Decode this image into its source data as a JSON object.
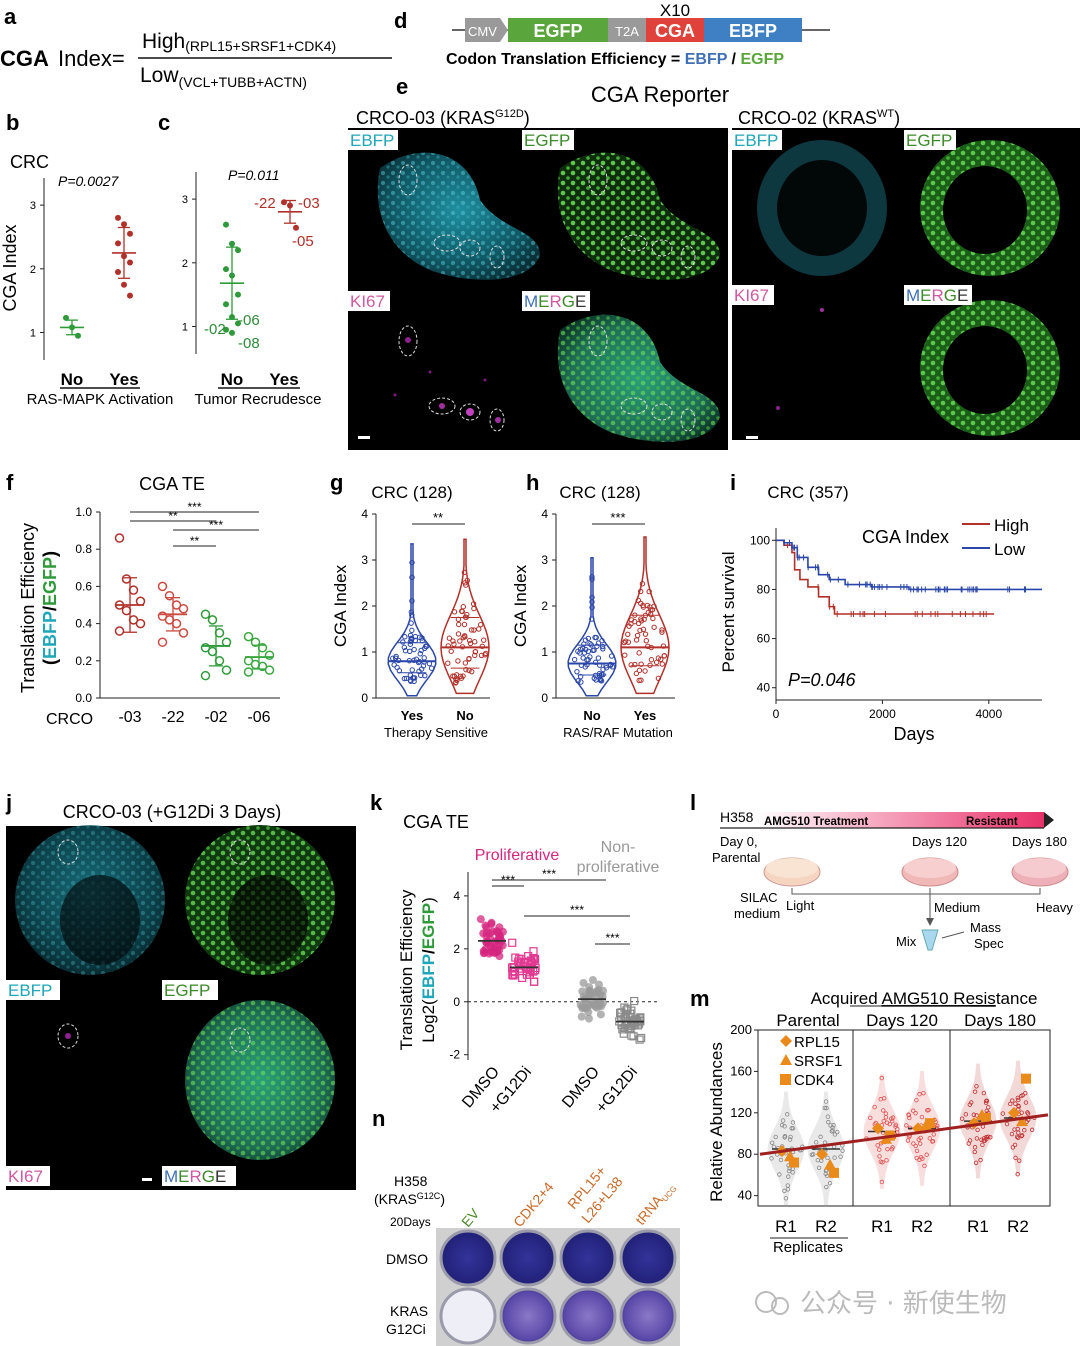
{
  "labels": {
    "a": "a",
    "b": "b",
    "c": "c",
    "d": "d",
    "e": "e",
    "f": "f",
    "g": "g",
    "h": "h",
    "i": "i",
    "j": "j",
    "k": "k",
    "l": "l",
    "m": "m",
    "n": "n"
  },
  "panel_a": {
    "prefix": "CGA",
    "word": "Index=",
    "numer_main": "High",
    "numer_sub": "(RPL15+SRSF1+CDK4)",
    "denom_main": "Low",
    "denom_sub": "(VCL+TUBB+ACTN)"
  },
  "panel_d": {
    "cmv": "CMV",
    "egfp": "EGFP",
    "t2a": "T2A",
    "cga": "CGA",
    "ebfp": "EBFP",
    "x10": "X10",
    "caption_a": "Codon Translation  Efficiency = ",
    "caption_ebfp": "EBFP",
    "caption_slash": " / ",
    "caption_egfp": "EGFP",
    "colors": {
      "egfp": "#5aa63c",
      "cga": "#e0413a",
      "ebfp": "#3f7fc4",
      "t2a": "#9a9a9a"
    }
  },
  "panel_e": {
    "title": "CGA Reporter",
    "left_title": "CRCO-03 (KRAS",
    "left_sup": "G12D",
    "left_close": ")",
    "right_title": "CRCO-02 (KRAS",
    "right_sup": "WT",
    "right_close": ")",
    "ch_ebfp": "EBFP",
    "ch_egfp": "EGFP",
    "ch_ki67": "KI67",
    "ch_merge_m": "M",
    "ch_merge_e": "E",
    "ch_merge_r": "R",
    "ch_merge_g": "G",
    "ch_merge_e2": "E"
  },
  "panel_b": {
    "title": "CRC",
    "pval": "P=0.0027",
    "ylabel": "CGA Index",
    "xticks": [
      "No",
      "Yes"
    ],
    "xlabel": "RAS-MAPK Activation",
    "chart_data": {
      "type": "scatter",
      "ylim": [
        0.6,
        3.3
      ],
      "yticks": [
        1,
        2,
        3
      ],
      "groups": [
        {
          "name": "No",
          "values": [
            1.23,
            1.08,
            0.95
          ],
          "mean": 1.08
        },
        {
          "name": "Yes",
          "values": [
            2.8,
            2.7,
            2.55,
            2.4,
            2.2,
            2.1,
            1.95,
            1.75,
            1.58
          ],
          "mean": 2.25
        }
      ]
    }
  },
  "panel_c": {
    "pval": "P=0.011",
    "xticks": [
      "No",
      "Yes"
    ],
    "xlabel": "Tumor Recrudesce",
    "ann_22": "-22",
    "ann_03": "-03",
    "ann_05": "-05",
    "ann_02": "-02",
    "ann_06": "-06",
    "ann_08": "-08",
    "chart_data": {
      "type": "scatter",
      "ylim": [
        0.6,
        3.3
      ],
      "yticks": [
        1,
        2,
        3
      ],
      "groups": [
        {
          "name": "No",
          "values": [
            2.6,
            2.3,
            2.2,
            1.9,
            1.8,
            1.5,
            1.35,
            1.15,
            1.05,
            0.95,
            0.9
          ],
          "mean": 1.68
        },
        {
          "name": "Yes",
          "values": [
            2.95,
            2.9,
            2.55
          ],
          "mean": 2.8
        }
      ]
    }
  },
  "panel_f": {
    "title": "CGA TE",
    "ylabel1": "Translation Efficiency",
    "ylabel2": "EBFP",
    "ylabel_slash": "/",
    "ylabel3": "EGFP",
    "xprefix": "CRCO",
    "stars": [
      "***",
      "**",
      "***",
      "**"
    ],
    "chart_data": {
      "type": "scatter",
      "ylim": [
        0,
        1.0
      ],
      "yticks": [
        0,
        0.2,
        0.4,
        0.6,
        0.8,
        1.0
      ],
      "categories": [
        "-03",
        "-22",
        "-02",
        "-06"
      ],
      "groups": [
        {
          "name": "-03",
          "mean": 0.5,
          "values": [
            0.86,
            0.64,
            0.58,
            0.52,
            0.5,
            0.47,
            0.42,
            0.4,
            0.36
          ]
        },
        {
          "name": "-22",
          "mean": 0.45,
          "values": [
            0.6,
            0.55,
            0.5,
            0.48,
            0.44,
            0.42,
            0.4,
            0.35,
            0.3
          ]
        },
        {
          "name": "-02",
          "mean": 0.28,
          "values": [
            0.45,
            0.42,
            0.35,
            0.3,
            0.27,
            0.25,
            0.2,
            0.15,
            0.12
          ]
        },
        {
          "name": "-06",
          "mean": 0.22,
          "values": [
            0.33,
            0.3,
            0.27,
            0.23,
            0.2,
            0.18,
            0.17,
            0.15,
            0.14
          ]
        }
      ]
    }
  },
  "panel_g": {
    "title": "CRC (128)",
    "ylabel": "CGA Index",
    "stars": "**",
    "xticks": [
      "Yes",
      "No"
    ],
    "xlabel": "Therapy Sensitive",
    "chart_data": {
      "type": "violin",
      "ylim": [
        0,
        4
      ],
      "yticks": [
        0,
        1,
        2,
        3,
        4
      ],
      "groups": [
        {
          "name": "Yes",
          "median": 0.8,
          "q1": 0.55,
          "q3": 1.2,
          "min": 0.05,
          "max": 3.35
        },
        {
          "name": "No",
          "median": 1.1,
          "q1": 0.65,
          "q3": 1.75,
          "min": 0.1,
          "max": 3.45
        }
      ]
    }
  },
  "panel_h": {
    "title": "CRC (128)",
    "ylabel": "CGA Index",
    "stars": "***",
    "xticks": [
      "No",
      "Yes"
    ],
    "xlabel": "RAS/RAF Mutation",
    "chart_data": {
      "type": "violin",
      "ylim": [
        0,
        4
      ],
      "yticks": [
        0,
        1,
        2,
        3,
        4
      ],
      "groups": [
        {
          "name": "No",
          "median": 0.75,
          "q1": 0.5,
          "q3": 1.15,
          "min": 0.05,
          "max": 3.05
        },
        {
          "name": "Yes",
          "median": 1.1,
          "q1": 0.7,
          "q3": 1.8,
          "min": 0.1,
          "max": 3.5
        }
      ]
    }
  },
  "panel_i": {
    "title": "CRC (357)",
    "legend_title": "CGA Index",
    "ylabel": "Percent survival",
    "xlabel": "Days",
    "pval": "P=0.046",
    "chart_data": {
      "type": "line",
      "xlim": [
        0,
        5000
      ],
      "ylim": [
        35,
        105
      ],
      "xticks": [
        0,
        2000,
        4000
      ],
      "yticks": [
        40,
        60,
        80,
        100
      ],
      "series": [
        {
          "name": "High",
          "color": "#b2302a",
          "x": [
            0,
            150,
            300,
            350,
            450,
            600,
            800,
            1000,
            1100,
            4100
          ],
          "y": [
            100,
            98,
            95,
            88,
            84,
            81,
            77,
            73,
            70,
            70
          ]
        },
        {
          "name": "Low",
          "color": "#2a46a8",
          "x": [
            0,
            150,
            300,
            400,
            600,
            800,
            1000,
            1300,
            1800,
            2500,
            3500,
            5000
          ],
          "y": [
            100,
            99,
            97,
            93,
            89,
            86,
            84,
            82,
            81,
            80,
            80,
            80
          ]
        }
      ]
    }
  },
  "panel_j": {
    "title": "CRCO-03 (+G12Di 3 Days)",
    "ch_ebfp": "EBFP",
    "ch_egfp": "EGFP",
    "ch_ki67": "KI67",
    "ch_merge_m": "M",
    "ch_merge_e": "E",
    "ch_merge_r": "R",
    "ch_merge_g": "G",
    "ch_merge_e2": "E"
  },
  "panel_k": {
    "title": "CGA TE",
    "prolif": "Proliferative",
    "nonprolif1": "Non-",
    "nonprolif2": "proliferative",
    "ylabel1": "Translation Efficiency",
    "ylabel2": "Log2(",
    "ylabel3": "EBFP",
    "ylabel_slash": "/",
    "ylabel4": "EGFP",
    "ylabel_close": ")",
    "stars": [
      "***",
      "***",
      "***",
      "***"
    ],
    "chart_data": {
      "type": "scatter",
      "ylim": [
        -2.2,
        4.6
      ],
      "yticks": [
        -2,
        0,
        2,
        4
      ],
      "categories": [
        "DMSO",
        "+G12Di",
        "DMSO",
        "+G12Di"
      ],
      "groups": [
        {
          "name": "DMSO",
          "mean": 2.3,
          "spread": 0.7,
          "color": "#d6267f"
        },
        {
          "name": "+G12Di",
          "mean": 1.3,
          "spread": 0.7,
          "color": "#e23a92"
        },
        {
          "name": "DMSO",
          "mean": 0.1,
          "spread": 0.7,
          "color": "#9a9a9a"
        },
        {
          "name": "+G12Di",
          "mean": -0.75,
          "spread": 0.6,
          "color": "#8a8a8a"
        }
      ]
    }
  },
  "panel_l": {
    "cell": "H358",
    "treatment": "AMG510 Treatment",
    "resistant": "Resistant",
    "day0a": "Day 0,",
    "day0b": "Parental",
    "day120": "Days 120",
    "day180": "Days 180",
    "silac1": "SILAC",
    "silac2": "medium",
    "light": "Light",
    "medium": "Medium",
    "heavy": "Heavy",
    "mix": "Mix",
    "ms1": "Mass",
    "ms2": "Spec"
  },
  "panel_m": {
    "title_a": "Acquired ",
    "title_b": "AMG510 Resis",
    "title_c": "tance",
    "groups": [
      "Parental",
      "Days 120",
      "Days 180"
    ],
    "ylabel": "Relative Abundances",
    "legend": [
      "RPL15",
      "SRSF1",
      "CDK4"
    ],
    "xticks": [
      "R1",
      "R2",
      "R1",
      "R2",
      "R1",
      "R2"
    ],
    "xlabel": "Replicates",
    "chart_data": {
      "type": "violin",
      "ylim": [
        30,
        200
      ],
      "yticks": [
        40,
        80,
        120,
        160,
        200
      ],
      "categories": [
        "Parental R1",
        "Parental R2",
        "Days 120 R1",
        "Days 120 R2",
        "Days 180 R1",
        "Days 180 R2"
      ],
      "medians": [
        85,
        85,
        102,
        105,
        112,
        115
      ],
      "trend": [
        80,
        118
      ],
      "markers": {
        "RPL15": [
          83,
          80,
          105,
          105,
          110,
          120
        ],
        "SRSF1": [
          78,
          70,
          95,
          108,
          118,
          112
        ],
        "CDK4": [
          72,
          62,
          98,
          110,
          115,
          153
        ]
      }
    }
  },
  "panel_n": {
    "cell": "H358",
    "kras": "(KRAS",
    "kras_sup": "G12C",
    "kras_close": ")",
    "days": "20Days",
    "cols": [
      "EV",
      "CDK2+4",
      "RPL15+",
      "L26+L38",
      "tRNA",
      "UCG"
    ],
    "row1": "DMSO",
    "row2a": "KRAS",
    "row2b": "G12Ci"
  },
  "watermark": "公众号 · 新使生物"
}
